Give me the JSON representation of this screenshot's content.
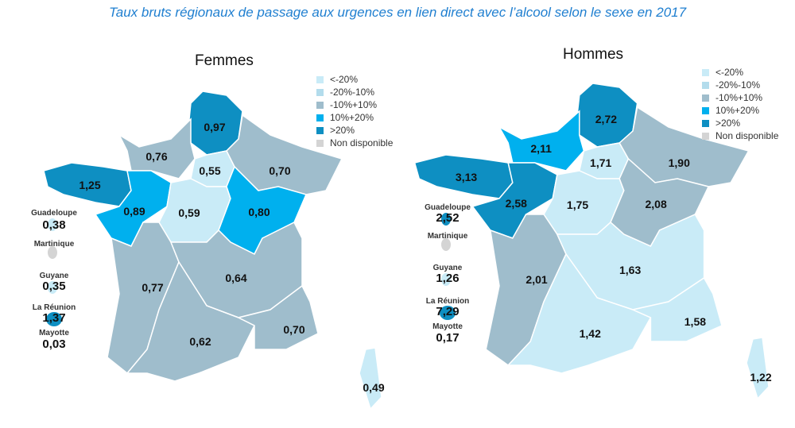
{
  "title": "Taux bruts régionaux de passage aux urgences en lien direct avec l’alcool selon le sexe en 2017",
  "legend": [
    {
      "label": "<-20%",
      "color": "#c9ebf7"
    },
    {
      "label": "-20%-10%",
      "color": "#b3dcec"
    },
    {
      "label": "-10%+10%",
      "color": "#9fbdcc"
    },
    {
      "label": "10%+20%",
      "color": "#00b0ee"
    },
    {
      "label": ">20%",
      "color": "#0e8fc2"
    },
    {
      "label": "Non disponible",
      "color": "#d4d4d4"
    }
  ],
  "maps": [
    {
      "title": "Femmes",
      "regions": [
        {
          "value": "0,97",
          "class": 4
        },
        {
          "value": "0,76",
          "class": 2
        },
        {
          "value": "0,55",
          "class": 0
        },
        {
          "value": "0,70",
          "class": 2
        },
        {
          "value": "1,25",
          "class": 4
        },
        {
          "value": "0,89",
          "class": 3
        },
        {
          "value": "0,59",
          "class": 0
        },
        {
          "value": "0,80",
          "class": 3
        },
        {
          "value": "0,77",
          "class": 2
        },
        {
          "value": "0,64",
          "class": 2
        },
        {
          "value": "0,62",
          "class": 2
        },
        {
          "value": "0,70",
          "class": 2
        },
        {
          "value": "0,49",
          "class": 0
        }
      ],
      "dom": [
        {
          "label": "Guadeloupe",
          "value": "0,38",
          "class": 0
        },
        {
          "label": "Martinique",
          "value": "",
          "class": 5
        },
        {
          "label": "Guyane",
          "value": "0,35",
          "class": 0
        },
        {
          "label": "La Réunion",
          "value": "1,37",
          "class": 4
        },
        {
          "label": "Mayotte",
          "value": "0,03",
          "class": null
        }
      ]
    },
    {
      "title": "Hommes",
      "regions": [
        {
          "value": "2,72",
          "class": 4
        },
        {
          "value": "2,11",
          "class": 3
        },
        {
          "value": "1,71",
          "class": 0
        },
        {
          "value": "1,90",
          "class": 2
        },
        {
          "value": "3,13",
          "class": 4
        },
        {
          "value": "2,58",
          "class": 4
        },
        {
          "value": "1,75",
          "class": 0
        },
        {
          "value": "2,08",
          "class": 2
        },
        {
          "value": "2,01",
          "class": 2
        },
        {
          "value": "1,63",
          "class": 0
        },
        {
          "value": "1,42",
          "class": 0
        },
        {
          "value": "1,58",
          "class": 0
        },
        {
          "value": "1,22",
          "class": 0
        }
      ],
      "dom": [
        {
          "label": "Guadeloupe",
          "value": "2,52",
          "class": 4
        },
        {
          "label": "Martinique",
          "value": "",
          "class": 5
        },
        {
          "label": "Guyane",
          "value": "1,26",
          "class": 0
        },
        {
          "label": "La Réunion",
          "value": "7,29",
          "class": 4
        },
        {
          "label": "Mayotte",
          "value": "0,17",
          "class": null
        }
      ]
    }
  ]
}
